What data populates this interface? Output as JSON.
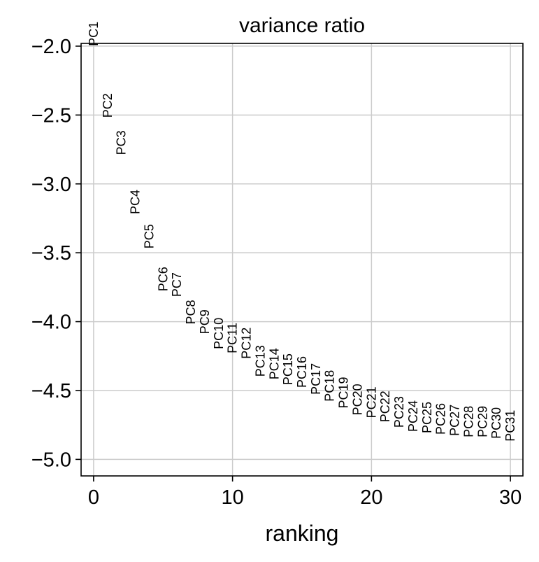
{
  "chart_data": {
    "type": "scatter",
    "title": "variance ratio",
    "xlabel": "ranking",
    "ylabel": "",
    "xlim": [
      -0.9,
      30.9
    ],
    "ylim": [
      -5.12,
      -1.98
    ],
    "xticks": [
      0,
      10,
      20,
      30
    ],
    "xtick_labels": [
      "0",
      "10",
      "20",
      "30"
    ],
    "yticks": [
      -2.0,
      -2.5,
      -3.0,
      -3.5,
      -4.0,
      -4.5,
      -5.0
    ],
    "ytick_labels": [
      "−2.0",
      "−2.5",
      "−3.0",
      "−3.5",
      "−4.0",
      "−4.5",
      "−5.0"
    ],
    "grid": true,
    "marker": "text",
    "points": [
      {
        "label": "PC1",
        "x": 0,
        "y": -2.0
      },
      {
        "label": "PC2",
        "x": 1,
        "y": -2.52
      },
      {
        "label": "PC3",
        "x": 2,
        "y": -2.79
      },
      {
        "label": "PC4",
        "x": 3,
        "y": -3.22
      },
      {
        "label": "PC5",
        "x": 4,
        "y": -3.47
      },
      {
        "label": "PC6",
        "x": 5,
        "y": -3.78
      },
      {
        "label": "PC7",
        "x": 6,
        "y": -3.82
      },
      {
        "label": "PC8",
        "x": 7,
        "y": -4.02
      },
      {
        "label": "PC9",
        "x": 8,
        "y": -4.09
      },
      {
        "label": "PC10",
        "x": 9,
        "y": -4.2
      },
      {
        "label": "PC11",
        "x": 10,
        "y": -4.23
      },
      {
        "label": "PC12",
        "x": 11,
        "y": -4.27
      },
      {
        "label": "PC13",
        "x": 12,
        "y": -4.4
      },
      {
        "label": "PC14",
        "x": 13,
        "y": -4.42
      },
      {
        "label": "PC15",
        "x": 14,
        "y": -4.46
      },
      {
        "label": "PC16",
        "x": 15,
        "y": -4.48
      },
      {
        "label": "PC17",
        "x": 16,
        "y": -4.53
      },
      {
        "label": "PC18",
        "x": 17,
        "y": -4.58
      },
      {
        "label": "PC19",
        "x": 18,
        "y": -4.63
      },
      {
        "label": "PC20",
        "x": 19,
        "y": -4.68
      },
      {
        "label": "PC21",
        "x": 20,
        "y": -4.7
      },
      {
        "label": "PC22",
        "x": 21,
        "y": -4.73
      },
      {
        "label": "PC23",
        "x": 22,
        "y": -4.77
      },
      {
        "label": "PC24",
        "x": 23,
        "y": -4.8
      },
      {
        "label": "PC25",
        "x": 24,
        "y": -4.81
      },
      {
        "label": "PC26",
        "x": 25,
        "y": -4.82
      },
      {
        "label": "PC27",
        "x": 26,
        "y": -4.83
      },
      {
        "label": "PC28",
        "x": 27,
        "y": -4.84
      },
      {
        "label": "PC29",
        "x": 28,
        "y": -4.84
      },
      {
        "label": "PC30",
        "x": 29,
        "y": -4.85
      },
      {
        "label": "PC31",
        "x": 30,
        "y": -4.87
      }
    ]
  }
}
